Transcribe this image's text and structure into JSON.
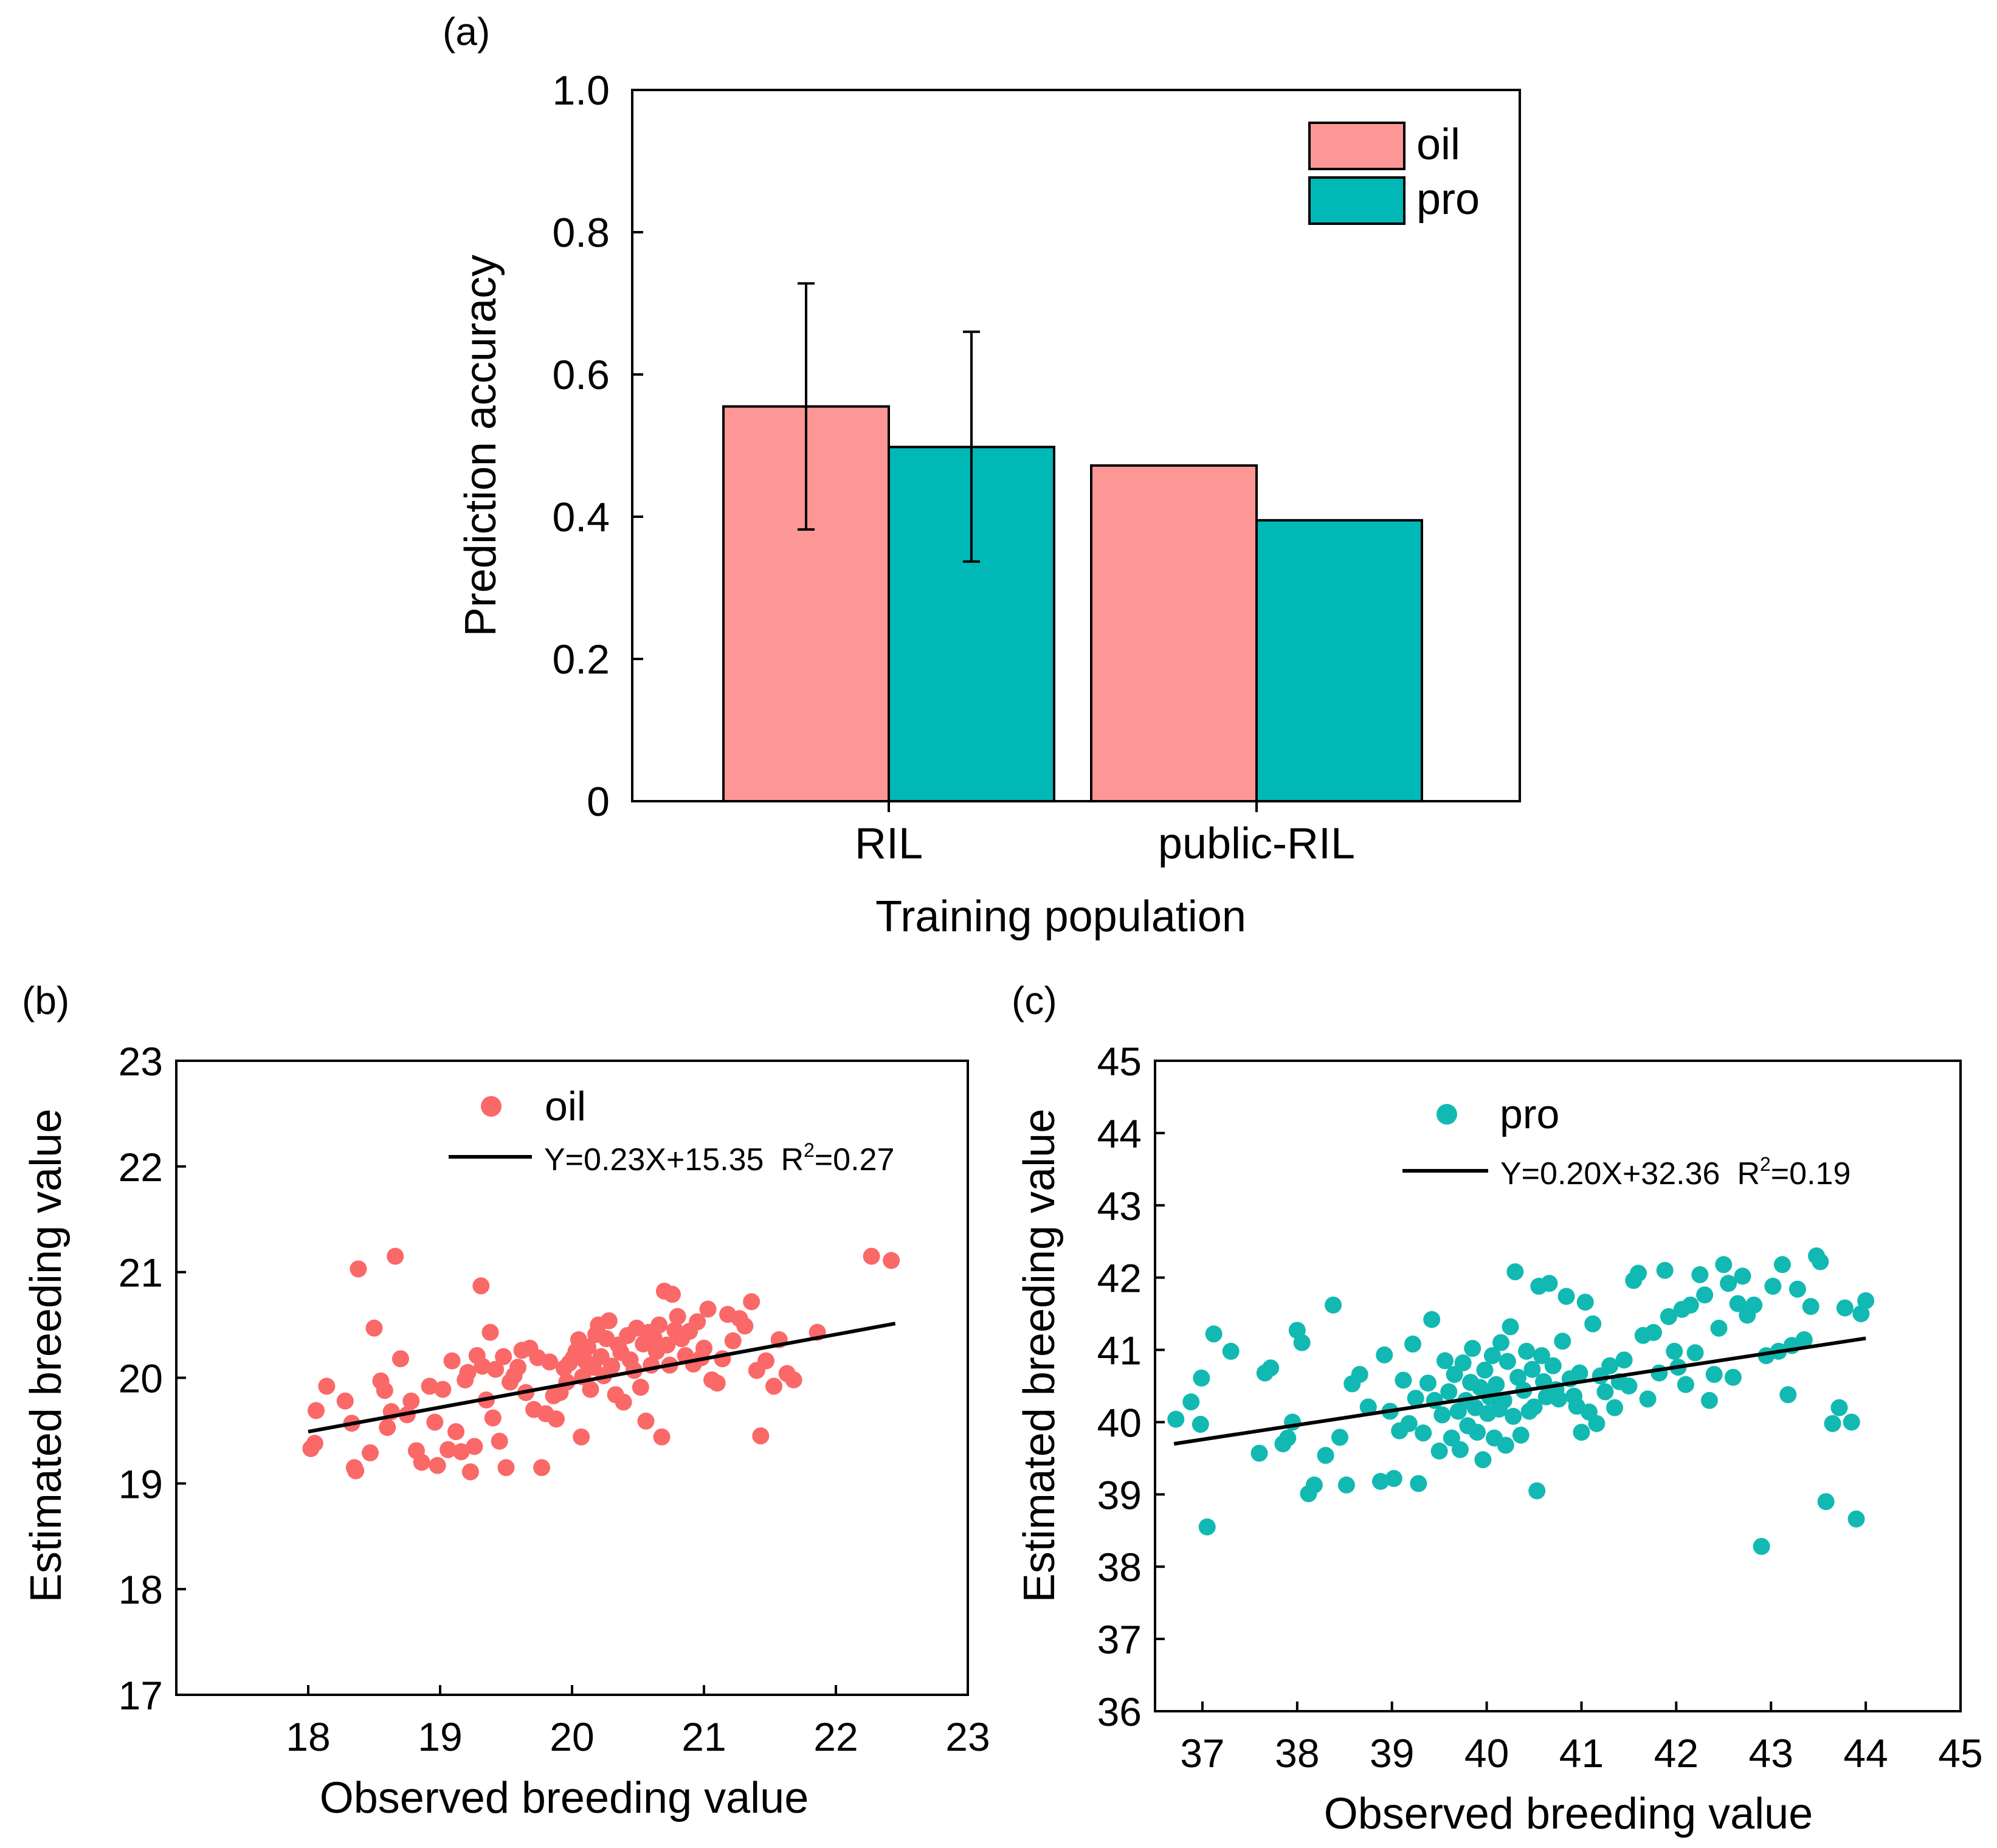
{
  "panels": {
    "a": {
      "label": "(a)"
    },
    "b": {
      "label": "(b)"
    },
    "c": {
      "label": "(c)"
    }
  },
  "colors": {
    "oil_bar": "#fc9795",
    "pro_bar": "#00b8b6",
    "oil_point": "#fa6868",
    "pro_point": "#12b9b2",
    "axis": "#000000"
  },
  "chart_data": [
    {
      "id": "a",
      "type": "bar",
      "title": "",
      "xlabel": "Training population",
      "ylabel": "Prediction accuracy",
      "ylim": [
        0,
        1.0
      ],
      "yticks": [
        0,
        0.2,
        0.4,
        0.6,
        0.8,
        1.0
      ],
      "ytick_labels": [
        "0",
        "0.2",
        "0.4",
        "0.6",
        "0.8",
        "1.0"
      ],
      "categories": [
        "RIL",
        "public-RIL"
      ],
      "legend": {
        "position": "top-right",
        "entries": [
          "oil",
          "pro"
        ]
      },
      "series": [
        {
          "name": "oil",
          "values": [
            0.555,
            0.472
          ],
          "error": [
            [
              0.382,
              0.728
            ],
            null
          ]
        },
        {
          "name": "pro",
          "values": [
            0.498,
            0.395
          ],
          "error": [
            [
              0.337,
              0.66
            ],
            null
          ]
        }
      ]
    },
    {
      "id": "b",
      "type": "scatter",
      "series_name": "oil",
      "xlabel": "Observed breeding  value",
      "ylabel": "Estimated breeding value",
      "xlim": [
        17,
        23
      ],
      "ylim": [
        17,
        23
      ],
      "xticks": [
        18,
        19,
        20,
        21,
        22,
        23
      ],
      "yticks": [
        17,
        18,
        19,
        20,
        21,
        22,
        23
      ],
      "fit": {
        "slope": 0.23,
        "intercept": 15.35,
        "x_range": [
          18.0,
          22.45
        ],
        "label": "Y=0.23X+15.35",
        "r2_prefix": "R",
        "r2_sup": "2",
        "r2_value": "=0.27"
      },
      "points": [
        [
          18.02,
          19.33
        ],
        [
          18.05,
          19.38
        ],
        [
          18.06,
          19.69
        ],
        [
          18.14,
          19.92
        ],
        [
          18.28,
          19.78
        ],
        [
          18.33,
          19.57
        ],
        [
          18.35,
          19.15
        ],
        [
          18.36,
          19.12
        ],
        [
          18.38,
          21.03
        ],
        [
          18.47,
          19.29
        ],
        [
          18.5,
          20.47
        ],
        [
          18.55,
          19.97
        ],
        [
          18.58,
          19.88
        ],
        [
          18.6,
          19.53
        ],
        [
          18.63,
          19.68
        ],
        [
          18.66,
          21.15
        ],
        [
          18.7,
          20.18
        ],
        [
          18.75,
          19.65
        ],
        [
          18.78,
          19.78
        ],
        [
          18.82,
          19.31
        ],
        [
          18.86,
          19.2
        ],
        [
          18.92,
          19.92
        ],
        [
          18.96,
          19.58
        ],
        [
          18.98,
          19.17
        ],
        [
          19.02,
          19.89
        ],
        [
          19.06,
          19.32
        ],
        [
          19.09,
          20.16
        ],
        [
          19.12,
          19.49
        ],
        [
          19.16,
          19.3
        ],
        [
          19.19,
          19.98
        ],
        [
          19.21,
          20.05
        ],
        [
          19.23,
          19.11
        ],
        [
          19.26,
          19.35
        ],
        [
          19.28,
          20.21
        ],
        [
          19.31,
          20.87
        ],
        [
          19.32,
          20.11
        ],
        [
          19.35,
          19.79
        ],
        [
          19.38,
          20.43
        ],
        [
          19.4,
          19.62
        ],
        [
          19.42,
          20.08
        ],
        [
          19.45,
          19.4
        ],
        [
          19.48,
          20.2
        ],
        [
          19.5,
          19.15
        ],
        [
          19.53,
          19.96
        ],
        [
          19.56,
          20.02
        ],
        [
          19.59,
          20.1
        ],
        [
          19.62,
          20.26
        ],
        [
          19.65,
          19.86
        ],
        [
          19.68,
          20.28
        ],
        [
          19.71,
          19.7
        ],
        [
          19.74,
          20.19
        ],
        [
          19.77,
          19.15
        ],
        [
          19.8,
          19.66
        ],
        [
          19.83,
          20.15
        ],
        [
          19.86,
          19.83
        ],
        [
          19.88,
          19.61
        ],
        [
          19.91,
          19.86
        ],
        [
          19.94,
          20.09
        ],
        [
          19.96,
          19.96
        ],
        [
          19.98,
          20.14
        ],
        [
          20.01,
          20.19
        ],
        [
          20.03,
          20.25
        ],
        [
          20.05,
          20.36
        ],
        [
          20.07,
          19.44
        ],
        [
          20.08,
          20.01
        ],
        [
          20.1,
          20.16
        ],
        [
          20.12,
          20.29
        ],
        [
          20.14,
          19.89
        ],
        [
          20.16,
          20.1
        ],
        [
          20.18,
          20.41
        ],
        [
          20.2,
          20.5
        ],
        [
          20.22,
          20.2
        ],
        [
          20.24,
          20.02
        ],
        [
          20.26,
          20.37
        ],
        [
          20.28,
          20.54
        ],
        [
          20.3,
          20.11
        ],
        [
          20.33,
          19.84
        ],
        [
          20.35,
          20.31
        ],
        [
          20.37,
          20.24
        ],
        [
          20.39,
          19.77
        ],
        [
          20.42,
          20.4
        ],
        [
          20.44,
          20.17
        ],
        [
          20.47,
          20.07
        ],
        [
          20.49,
          20.47
        ],
        [
          20.52,
          19.91
        ],
        [
          20.54,
          20.32
        ],
        [
          20.56,
          19.59
        ],
        [
          20.58,
          20.43
        ],
        [
          20.6,
          20.12
        ],
        [
          20.62,
          20.38
        ],
        [
          20.64,
          20.25
        ],
        [
          20.66,
          20.5
        ],
        [
          20.68,
          19.44
        ],
        [
          20.7,
          20.82
        ],
        [
          20.72,
          20.31
        ],
        [
          20.74,
          20.12
        ],
        [
          20.76,
          20.79
        ],
        [
          20.78,
          20.45
        ],
        [
          20.8,
          20.58
        ],
        [
          20.83,
          20.37
        ],
        [
          20.86,
          20.21
        ],
        [
          20.89,
          20.44
        ],
        [
          20.92,
          20.13
        ],
        [
          20.95,
          20.53
        ],
        [
          20.98,
          20.19
        ],
        [
          21.0,
          20.28
        ],
        [
          21.03,
          20.65
        ],
        [
          21.06,
          19.98
        ],
        [
          21.1,
          19.95
        ],
        [
          21.14,
          20.18
        ],
        [
          21.18,
          20.6
        ],
        [
          21.22,
          20.35
        ],
        [
          21.27,
          20.56
        ],
        [
          21.31,
          20.49
        ],
        [
          21.36,
          20.72
        ],
        [
          21.4,
          20.07
        ],
        [
          21.43,
          19.45
        ],
        [
          21.47,
          20.16
        ],
        [
          21.53,
          19.92
        ],
        [
          21.57,
          20.36
        ],
        [
          21.63,
          20.04
        ],
        [
          21.68,
          19.98
        ],
        [
          21.86,
          20.43
        ],
        [
          22.27,
          21.15
        ],
        [
          22.42,
          21.11
        ]
      ]
    },
    {
      "id": "c",
      "type": "scatter",
      "series_name": "pro",
      "xlabel": "Observed breeding value",
      "ylabel": "Estimated breeding value",
      "xlim": [
        36.5,
        45
      ],
      "ylim": [
        36,
        45
      ],
      "xticks": [
        37,
        38,
        39,
        40,
        41,
        42,
        43,
        44,
        45
      ],
      "yticks": [
        36,
        37,
        38,
        39,
        40,
        41,
        42,
        43,
        44,
        45
      ],
      "fit": {
        "slope": 0.2,
        "intercept": 32.36,
        "x_range": [
          36.7,
          44.0
        ],
        "label": "Y=0.20X+32.36",
        "r2_prefix": "R",
        "r2_sup": "2",
        "r2_value": "=0.19"
      },
      "points": [
        [
          36.72,
          40.04
        ],
        [
          36.88,
          40.28
        ],
        [
          36.98,
          39.97
        ],
        [
          36.99,
          40.61
        ],
        [
          37.05,
          38.55
        ],
        [
          37.12,
          41.22
        ],
        [
          37.3,
          40.98
        ],
        [
          37.6,
          39.57
        ],
        [
          37.66,
          40.68
        ],
        [
          37.72,
          40.75
        ],
        [
          37.85,
          39.7
        ],
        [
          37.9,
          39.78
        ],
        [
          37.95,
          40.0
        ],
        [
          38.0,
          41.27
        ],
        [
          38.05,
          41.1
        ],
        [
          38.12,
          39.01
        ],
        [
          38.18,
          39.13
        ],
        [
          38.3,
          39.54
        ],
        [
          38.38,
          41.62
        ],
        [
          38.45,
          39.79
        ],
        [
          38.52,
          39.13
        ],
        [
          38.58,
          40.53
        ],
        [
          38.66,
          40.66
        ],
        [
          38.75,
          40.21
        ],
        [
          38.88,
          39.18
        ],
        [
          38.92,
          40.93
        ],
        [
          38.98,
          40.15
        ],
        [
          39.02,
          39.22
        ],
        [
          39.08,
          39.88
        ],
        [
          39.12,
          40.58
        ],
        [
          39.18,
          39.98
        ],
        [
          39.22,
          41.08
        ],
        [
          39.25,
          40.33
        ],
        [
          39.28,
          39.15
        ],
        [
          39.33,
          39.85
        ],
        [
          39.38,
          40.54
        ],
        [
          39.42,
          41.42
        ],
        [
          39.45,
          40.3
        ],
        [
          39.5,
          39.6
        ],
        [
          39.53,
          40.1
        ],
        [
          39.56,
          40.85
        ],
        [
          39.6,
          40.42
        ],
        [
          39.63,
          39.78
        ],
        [
          39.66,
          40.66
        ],
        [
          39.7,
          40.15
        ],
        [
          39.72,
          39.62
        ],
        [
          39.75,
          40.82
        ],
        [
          39.78,
          40.3
        ],
        [
          39.8,
          39.95
        ],
        [
          39.83,
          40.55
        ],
        [
          39.85,
          41.02
        ],
        [
          39.88,
          40.2
        ],
        [
          39.9,
          39.86
        ],
        [
          39.93,
          40.48
        ],
        [
          39.96,
          39.48
        ],
        [
          39.98,
          40.72
        ],
        [
          40.01,
          40.12
        ],
        [
          40.03,
          40.35
        ],
        [
          40.06,
          40.92
        ],
        [
          40.08,
          39.78
        ],
        [
          40.1,
          40.52
        ],
        [
          40.13,
          40.18
        ],
        [
          40.15,
          41.1
        ],
        [
          40.18,
          40.3
        ],
        [
          40.2,
          39.68
        ],
        [
          40.22,
          40.84
        ],
        [
          40.25,
          41.32
        ],
        [
          40.28,
          40.08
        ],
        [
          40.3,
          42.08
        ],
        [
          40.33,
          40.62
        ],
        [
          40.36,
          39.82
        ],
        [
          40.39,
          40.44
        ],
        [
          40.42,
          40.98
        ],
        [
          40.45,
          40.15
        ],
        [
          40.48,
          40.73
        ],
        [
          40.5,
          40.21
        ],
        [
          40.53,
          39.05
        ],
        [
          40.55,
          41.88
        ],
        [
          40.58,
          40.92
        ],
        [
          40.6,
          40.56
        ],
        [
          40.63,
          40.35
        ],
        [
          40.66,
          41.92
        ],
        [
          40.7,
          40.78
        ],
        [
          40.73,
          40.45
        ],
        [
          40.76,
          40.32
        ],
        [
          40.8,
          41.12
        ],
        [
          40.84,
          41.74
        ],
        [
          40.88,
          40.6
        ],
        [
          40.92,
          40.36
        ],
        [
          40.95,
          40.22
        ],
        [
          40.98,
          40.68
        ],
        [
          41.0,
          39.86
        ],
        [
          41.04,
          41.66
        ],
        [
          41.08,
          40.14
        ],
        [
          41.12,
          41.36
        ],
        [
          41.16,
          39.98
        ],
        [
          41.2,
          40.64
        ],
        [
          41.25,
          40.42
        ],
        [
          41.3,
          40.78
        ],
        [
          41.35,
          40.2
        ],
        [
          41.4,
          40.56
        ],
        [
          41.45,
          40.86
        ],
        [
          41.5,
          40.5
        ],
        [
          41.55,
          41.96
        ],
        [
          41.6,
          42.06
        ],
        [
          41.65,
          41.2
        ],
        [
          41.7,
          40.32
        ],
        [
          41.76,
          41.24
        ],
        [
          41.82,
          40.68
        ],
        [
          41.88,
          42.1
        ],
        [
          41.92,
          41.46
        ],
        [
          41.98,
          40.98
        ],
        [
          42.02,
          40.76
        ],
        [
          42.06,
          41.56
        ],
        [
          42.1,
          40.52
        ],
        [
          42.15,
          41.62
        ],
        [
          42.2,
          40.96
        ],
        [
          42.25,
          42.04
        ],
        [
          42.3,
          41.76
        ],
        [
          42.35,
          40.3
        ],
        [
          42.4,
          40.66
        ],
        [
          42.45,
          41.3
        ],
        [
          42.5,
          42.18
        ],
        [
          42.55,
          41.92
        ],
        [
          42.6,
          40.62
        ],
        [
          42.65,
          41.64
        ],
        [
          42.7,
          42.02
        ],
        [
          42.75,
          41.48
        ],
        [
          42.82,
          41.62
        ],
        [
          42.9,
          38.28
        ],
        [
          42.95,
          40.92
        ],
        [
          43.02,
          41.88
        ],
        [
          43.08,
          40.98
        ],
        [
          43.12,
          42.18
        ],
        [
          43.18,
          40.38
        ],
        [
          43.22,
          41.06
        ],
        [
          43.28,
          41.84
        ],
        [
          43.35,
          41.14
        ],
        [
          43.42,
          41.6
        ],
        [
          43.48,
          42.3
        ],
        [
          43.52,
          42.22
        ],
        [
          43.58,
          38.9
        ],
        [
          43.65,
          39.98
        ],
        [
          43.72,
          40.2
        ],
        [
          43.78,
          41.58
        ],
        [
          43.85,
          40.0
        ],
        [
          43.9,
          38.66
        ],
        [
          43.95,
          41.5
        ],
        [
          44.0,
          41.68
        ]
      ]
    }
  ]
}
